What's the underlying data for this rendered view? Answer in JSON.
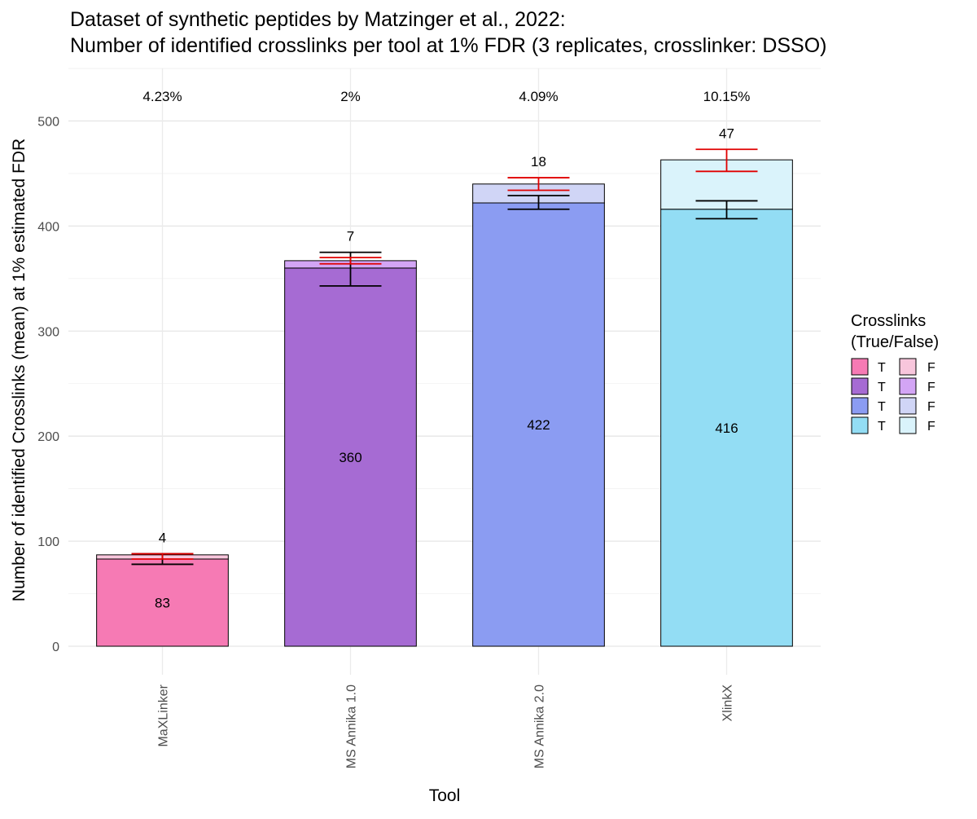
{
  "chart_data": {
    "type": "bar",
    "stacked": true,
    "title": "Dataset of synthetic peptides by Matzinger et al., 2022:",
    "subtitle": "Number of identified crosslinks per tool at 1% FDR (3 replicates, crosslinker: DSSO)",
    "xlabel": "Tool",
    "ylabel": "Number of identified Crosslinks (mean) at 1% estimated FDR",
    "ylim": [
      0,
      550
    ],
    "yticks": [
      0,
      100,
      200,
      300,
      400,
      500
    ],
    "grid": true,
    "legend_position": "right",
    "legend_title_lines": [
      "Crosslinks",
      "(True/False)"
    ],
    "categories": [
      "MaXLinker",
      "MS Annika 1.0",
      "MS Annika 2.0",
      "XlinkX"
    ],
    "series": [
      {
        "name": "T",
        "values": [
          83,
          360,
          422,
          416
        ]
      },
      {
        "name": "F",
        "values": [
          4,
          7,
          18,
          47
        ]
      }
    ],
    "true_labels": [
      "83",
      "360",
      "422",
      "416"
    ],
    "false_labels": [
      "4",
      "7",
      "18",
      "47"
    ],
    "fdr_labels": [
      "4.23%",
      "2%",
      "4.09%",
      "10.15%"
    ],
    "colors_true": [
      "#F67AB4",
      "#A66BD3",
      "#8B9CF2",
      "#93DDF4"
    ],
    "colors_false": [
      "#F8C6DC",
      "#D3A5F5",
      "#D0D5F6",
      "#DAF3FB"
    ],
    "error_color_true": "#000000",
    "error_color_false": "#E00000",
    "error_true": [
      {
        "low": 78,
        "high": 88
      },
      {
        "low": 343,
        "high": 375
      },
      {
        "low": 416,
        "high": 429
      },
      {
        "low": 407,
        "high": 424
      }
    ],
    "error_total": [
      {
        "low": 83,
        "high": 88
      },
      {
        "low": 364,
        "high": 370
      },
      {
        "low": 434,
        "high": 446
      },
      {
        "low": 452,
        "high": 473
      }
    ],
    "legend_entries": [
      {
        "true_label": "T",
        "false_label": "F"
      },
      {
        "true_label": "T",
        "false_label": "F"
      },
      {
        "true_label": "T",
        "false_label": "F"
      },
      {
        "true_label": "T",
        "false_label": "F"
      }
    ]
  }
}
